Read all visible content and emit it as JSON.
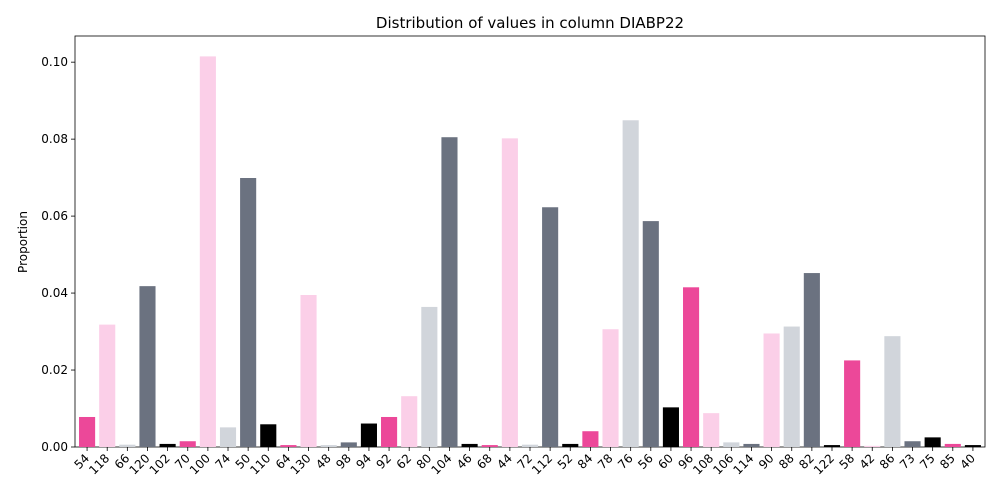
{
  "chart_data": {
    "type": "bar",
    "title": "Distribution of values in column DIABP22",
    "y_label": "Proportion",
    "categories": [
      "54",
      "118",
      "66",
      "120",
      "102",
      "70",
      "100",
      "74",
      "50",
      "110",
      "64",
      "130",
      "48",
      "98",
      "94",
      "92",
      "62",
      "80",
      "104",
      "46",
      "68",
      "44",
      "72",
      "112",
      "52",
      "84",
      "78",
      "76",
      "56",
      "60",
      "96",
      "108",
      "106",
      "114",
      "90",
      "88",
      "82",
      "122",
      "58",
      "42",
      "86",
      "73",
      "75",
      "85",
      "40"
    ],
    "values": [
      0.0078,
      0.0318,
      0.0006,
      0.0418,
      0.0008,
      0.0015,
      0.1015,
      0.0051,
      0.0699,
      0.0059,
      0.0005,
      0.0395,
      0.0005,
      0.0012,
      0.0061,
      0.0078,
      0.0132,
      0.0364,
      0.0805,
      0.0008,
      0.0005,
      0.0802,
      0.0006,
      0.0623,
      0.0008,
      0.0041,
      0.0306,
      0.0849,
      0.0587,
      0.0103,
      0.0415,
      0.0088,
      0.0012,
      0.0008,
      0.0295,
      0.0313,
      0.0452,
      0.0005,
      0.0225,
      0.0003,
      0.0288,
      0.0015,
      0.0025,
      0.0008,
      0.0005
    ],
    "colors": [
      "#ec4899",
      "#fbcfe8",
      "#d1d5db",
      "#6b7280",
      "#000000",
      "#ec4899",
      "#fbcfe8",
      "#d1d5db",
      "#6b7280",
      "#000000",
      "#ec4899",
      "#fbcfe8",
      "#d1d5db",
      "#6b7280",
      "#000000",
      "#ec4899",
      "#fbcfe8",
      "#d1d5db",
      "#6b7280",
      "#000000",
      "#ec4899",
      "#fbcfe8",
      "#d1d5db",
      "#6b7280",
      "#000000",
      "#ec4899",
      "#fbcfe8",
      "#d1d5db",
      "#6b7280",
      "#000000",
      "#ec4899",
      "#fbcfe8",
      "#d1d5db",
      "#6b7280",
      "#fbcfe8",
      "#d1d5db",
      "#6b7280",
      "#000000",
      "#ec4899",
      "#fbcfe8",
      "#d1d5db",
      "#6b7280",
      "#000000",
      "#ec4899",
      "#000000"
    ],
    "ylim": [
      0,
      0.1068
    ],
    "yticks": [
      {
        "value": 0,
        "label": "0.00"
      },
      {
        "value": 0.02,
        "label": "0.02"
      },
      {
        "value": 0.04,
        "label": "0.04"
      },
      {
        "value": 0.06,
        "label": "0.06"
      },
      {
        "value": 0.08,
        "label": "0.08"
      },
      {
        "value": 0.1,
        "label": "0.10"
      }
    ],
    "grid": false
  }
}
